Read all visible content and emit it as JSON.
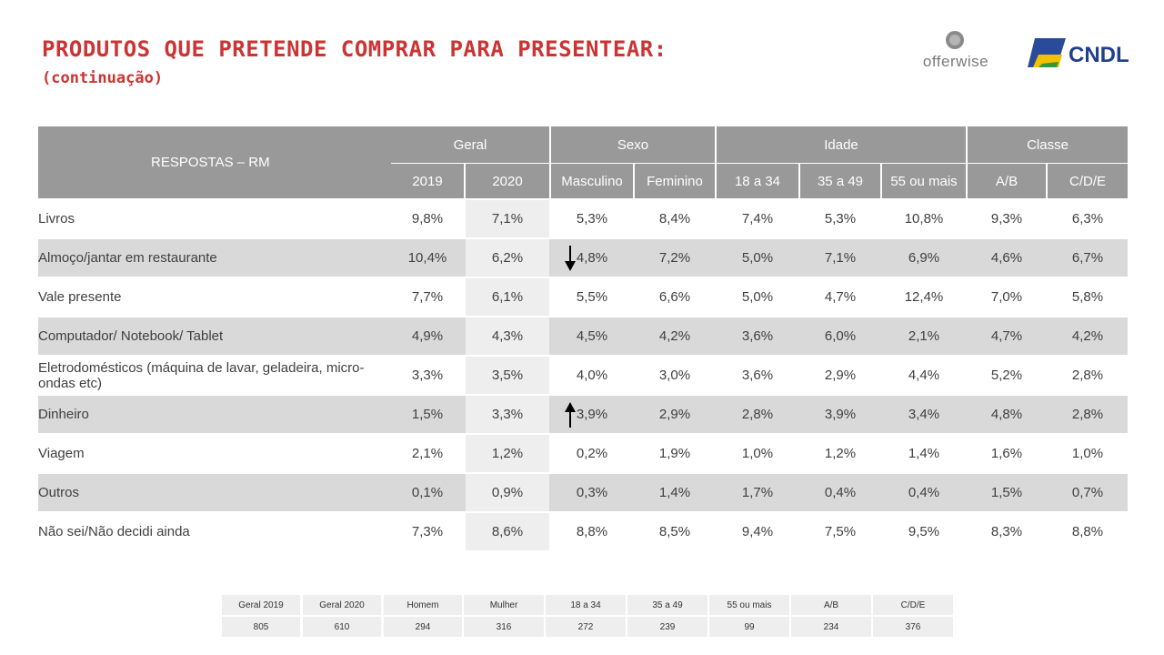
{
  "header": {
    "title": "PRODUTOS QUE PRETENDE COMPRAR PARA PRESENTEAR:",
    "subtitle": "(continuação)",
    "logos": {
      "offerwise": "offerwise",
      "cndl": "CNDL"
    }
  },
  "table": {
    "corner_label": "RESPOSTAS – RM",
    "groups": [
      "Geral",
      "Sexo",
      "Idade",
      "Classe"
    ],
    "columns": [
      "2019",
      "2020",
      "Masculino",
      "Feminino",
      "18 a 34",
      "35 a 49",
      "55 ou mais",
      "A/B",
      "C/D/E"
    ],
    "rows": [
      {
        "label": "Livros",
        "values": [
          "9,8%",
          "7,1%",
          "5,3%",
          "8,4%",
          "7,4%",
          "5,3%",
          "10,8%",
          "9,3%",
          "6,3%"
        ]
      },
      {
        "label": "Almoço/jantar em restaurante",
        "values": [
          "10,4%",
          "6,2%",
          "4,8%",
          "7,2%",
          "5,0%",
          "7,1%",
          "6,9%",
          "4,6%",
          "6,7%"
        ],
        "trend": "down"
      },
      {
        "label": "Vale presente",
        "values": [
          "7,7%",
          "6,1%",
          "5,5%",
          "6,6%",
          "5,0%",
          "4,7%",
          "12,4%",
          "7,0%",
          "5,8%"
        ]
      },
      {
        "label": "Computador/ Notebook/ Tablet",
        "values": [
          "4,9%",
          "4,3%",
          "4,5%",
          "4,2%",
          "3,6%",
          "6,0%",
          "2,1%",
          "4,7%",
          "4,2%"
        ]
      },
      {
        "label": "Eletrodomésticos (máquina de lavar, geladeira, micro-ondas etc)",
        "values": [
          "3,3%",
          "3,5%",
          "4,0%",
          "3,0%",
          "3,6%",
          "2,9%",
          "4,4%",
          "5,2%",
          "2,8%"
        ]
      },
      {
        "label": "Dinheiro",
        "values": [
          "1,5%",
          "3,3%",
          "3,9%",
          "2,9%",
          "2,8%",
          "3,9%",
          "3,4%",
          "4,8%",
          "2,8%"
        ],
        "trend": "up"
      },
      {
        "label": "Viagem",
        "values": [
          "2,1%",
          "1,2%",
          "0,2%",
          "1,9%",
          "1,0%",
          "1,2%",
          "1,4%",
          "1,6%",
          "1,0%"
        ]
      },
      {
        "label": "Outros",
        "values": [
          "0,1%",
          "0,9%",
          "0,3%",
          "1,4%",
          "1,7%",
          "0,4%",
          "0,4%",
          "1,5%",
          "0,7%"
        ]
      },
      {
        "label": "Não sei/Não decidi ainda",
        "values": [
          "7,3%",
          "8,6%",
          "8,8%",
          "8,5%",
          "9,4%",
          "7,5%",
          "9,5%",
          "8,3%",
          "8,8%"
        ]
      }
    ]
  },
  "base_table": {
    "headers": [
      "Geral 2019",
      "Geral 2020",
      "Homem",
      "Mulher",
      "18 a 34",
      "35 a 49",
      "55 ou mais",
      "A/B",
      "C/D/E"
    ],
    "values": [
      "805",
      "610",
      "294",
      "316",
      "272",
      "239",
      "99",
      "234",
      "376"
    ]
  },
  "colors": {
    "title": "#cc3333",
    "header_bg": "#999999",
    "row_shade": "#d9d9d9",
    "col_2020_bg": "#eeeeee"
  }
}
